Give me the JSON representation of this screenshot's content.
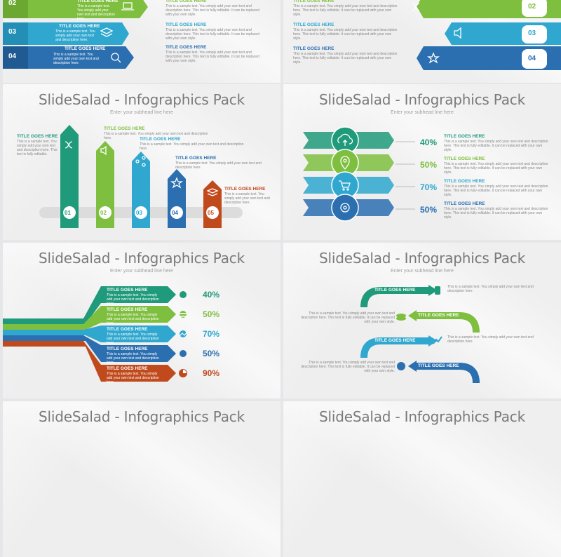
{
  "colors": {
    "green": "#1f9a7a",
    "lime": "#7fbf3f",
    "sky": "#2fa7cf",
    "blue": "#2b6fb0",
    "rust": "#c04a1c"
  },
  "common": {
    "title": "SlideSalad - Infographics Pack",
    "subhead": "Enter your subhead line here",
    "item_title": "TITLE GOES HERE",
    "body": "This is a sample text. You simply add your own text and description here. This text is fully editable. It can be replaced with your own style.",
    "short_body": "This is a sample text. You simply add your own text and description here.",
    "tiny_body": "This is a sample text. You simply add your own text and description here. This text is fully editable."
  },
  "slide1": {
    "numbers": [
      "02",
      "03",
      "04"
    ]
  },
  "slide2": {
    "numbers": [
      "02",
      "03",
      "04"
    ]
  },
  "slide3": {
    "numbers": [
      "01",
      "02",
      "03",
      "04",
      "05"
    ]
  },
  "slide4": {
    "percents": [
      "40%",
      "50%",
      "70%",
      "50%"
    ]
  },
  "slide5": {
    "percents": [
      "40%",
      "50%",
      "70%",
      "50%",
      "90%"
    ]
  },
  "icons": [
    "shuffle-icon",
    "speaker-icon",
    "share-icon",
    "star-icon",
    "layers-icon",
    "cloud-upload-icon",
    "location-pin-icon",
    "cart-icon",
    "gear-icon",
    "people-icon",
    "coins-icon",
    "chart-icon",
    "pie-chart-icon",
    "globe-icon",
    "laptop-icon",
    "search-icon"
  ]
}
